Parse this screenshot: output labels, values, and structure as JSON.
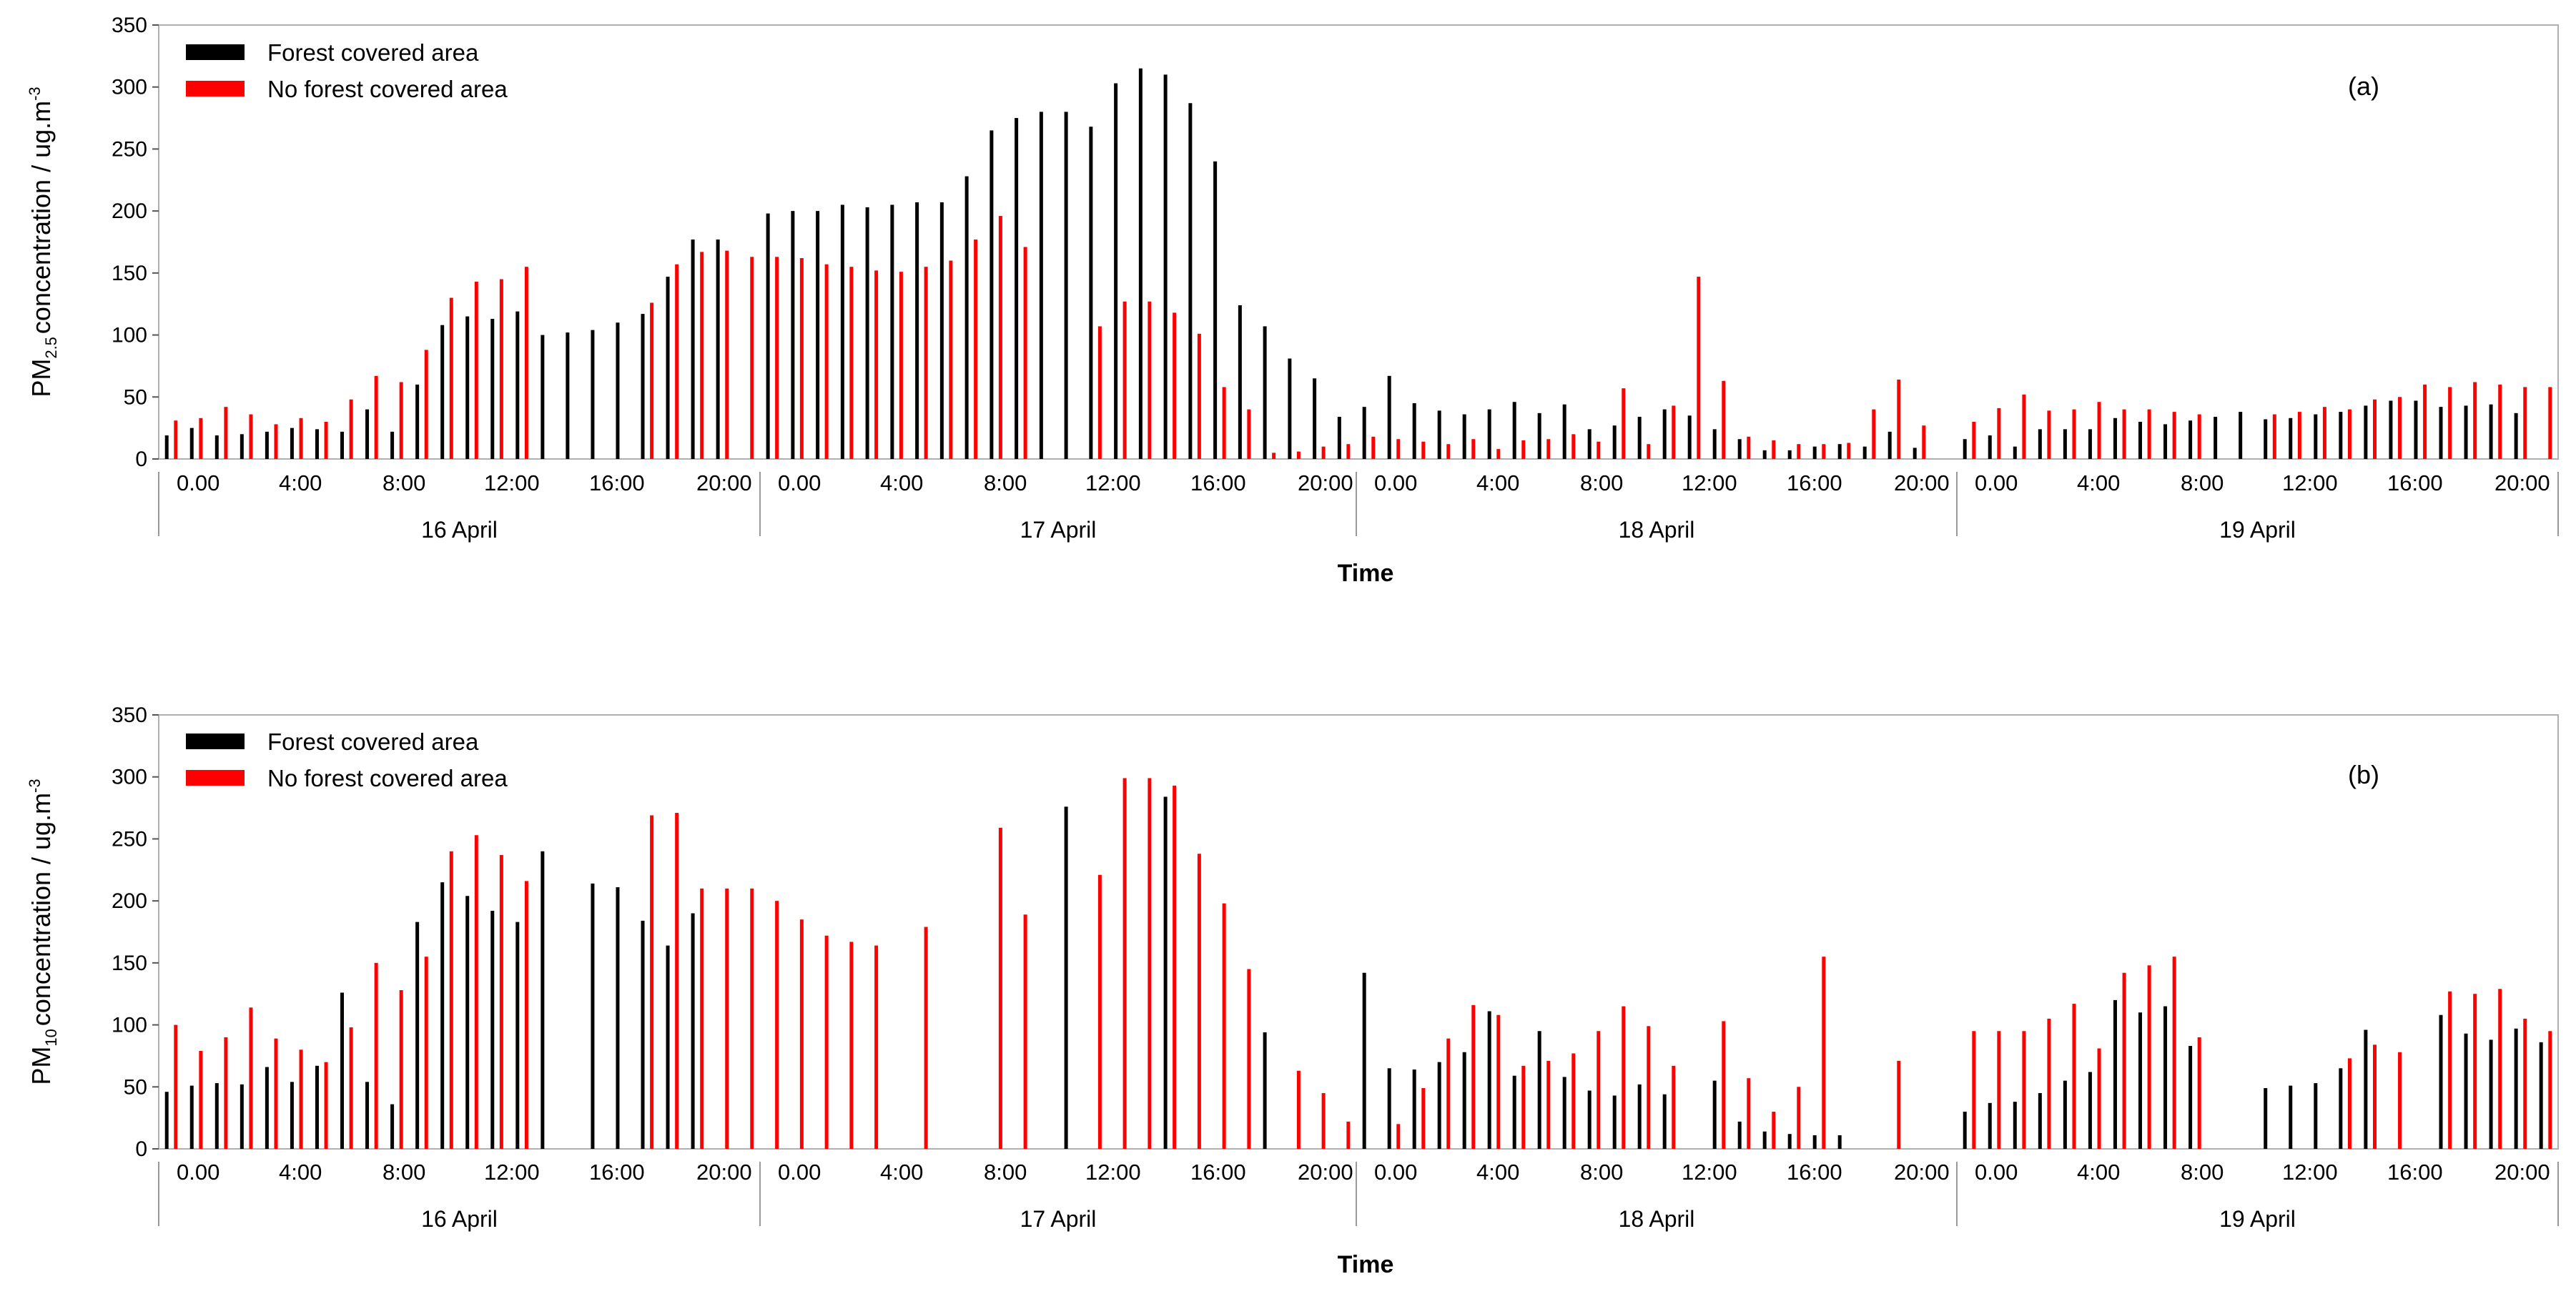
{
  "chart_data": [
    {
      "type": "bar",
      "panel_label": "(a)",
      "ylabel": "PM2.5 concentration / ug.m-3",
      "ylabel_parts": {
        "base": "PM",
        "sub": "2.5",
        "rest": "concentration / ug.m",
        "sup": "-3"
      },
      "xlabel": "Time",
      "ylim": [
        0,
        350
      ],
      "yticks": [
        "0",
        "50",
        "100",
        "150",
        "200",
        "250",
        "300",
        "350"
      ],
      "days": [
        "16 April",
        "17 April",
        "18 April",
        "19 April"
      ],
      "time_ticks": [
        "0.00",
        "4:00",
        "8:00",
        "12:00",
        "16:00",
        "20:00"
      ],
      "legend": {
        "position": "top-left",
        "entries": [
          "Forest covered area",
          "No forest covered area"
        ]
      },
      "colors": {
        "forest": "#000000",
        "no_forest": "#ff0000"
      },
      "series": [
        {
          "name": "Forest covered area",
          "values": [
            19,
            25,
            19,
            20,
            22,
            25,
            24,
            22,
            40,
            22,
            60,
            108,
            115,
            113,
            119,
            100,
            102,
            104,
            110,
            117,
            147,
            177,
            177,
            null,
            198,
            200,
            200,
            205,
            203,
            205,
            207,
            207,
            228,
            265,
            275,
            280,
            280,
            268,
            303,
            315,
            310,
            287,
            240,
            124,
            107,
            81,
            65,
            34,
            42,
            67,
            45,
            39,
            36,
            40,
            46,
            37,
            44,
            24,
            27,
            34,
            40,
            35,
            24,
            16,
            7,
            7,
            10,
            12,
            10,
            22,
            9,
            null,
            16,
            19,
            10,
            24,
            24,
            24,
            33,
            30,
            28,
            31,
            34,
            38,
            32,
            33,
            36,
            38,
            43,
            47,
            47,
            42,
            43,
            44,
            37,
            null
          ]
        },
        {
          "name": "No forest covered area",
          "values": [
            31,
            33,
            42,
            36,
            28,
            33,
            30,
            48,
            67,
            62,
            88,
            130,
            143,
            145,
            155,
            null,
            null,
            null,
            null,
            126,
            157,
            167,
            168,
            163,
            163,
            162,
            157,
            155,
            152,
            151,
            155,
            160,
            177,
            196,
            171,
            null,
            null,
            107,
            127,
            127,
            118,
            101,
            58,
            40,
            5,
            6,
            10,
            12,
            18,
            16,
            14,
            12,
            16,
            8,
            15,
            16,
            20,
            14,
            57,
            12,
            43,
            147,
            63,
            18,
            15,
            12,
            12,
            13,
            40,
            64,
            27,
            null,
            30,
            41,
            52,
            39,
            40,
            46,
            40,
            40,
            38,
            36,
            null,
            null,
            36,
            38,
            42,
            40,
            48,
            50,
            60,
            58,
            62,
            60,
            58,
            58
          ]
        }
      ]
    },
    {
      "type": "bar",
      "panel_label": "(b)",
      "ylabel": "PM10 concentration / ug.m-3",
      "ylabel_parts": {
        "base": "PM",
        "sub": "10",
        "rest": "concentration / ug.m",
        "sup": "-3"
      },
      "xlabel": "Time",
      "ylim": [
        0,
        350
      ],
      "yticks": [
        "0",
        "50",
        "100",
        "150",
        "200",
        "250",
        "300",
        "350"
      ],
      "days": [
        "16 April",
        "17 April",
        "18 April",
        "19 April"
      ],
      "time_ticks": [
        "0.00",
        "4:00",
        "8:00",
        "12:00",
        "16:00",
        "20:00"
      ],
      "legend": {
        "position": "top-left",
        "entries": [
          "Forest covered area",
          "No forest covered area"
        ]
      },
      "colors": {
        "forest": "#000000",
        "no_forest": "#ff0000"
      },
      "series": [
        {
          "name": "Forest covered area",
          "values": [
            46,
            51,
            53,
            52,
            66,
            54,
            67,
            126,
            54,
            36,
            183,
            215,
            204,
            192,
            183,
            240,
            null,
            214,
            211,
            184,
            164,
            190,
            null,
            null,
            null,
            null,
            null,
            null,
            null,
            null,
            null,
            null,
            null,
            null,
            null,
            null,
            276,
            null,
            null,
            null,
            284,
            null,
            null,
            null,
            94,
            null,
            null,
            null,
            142,
            65,
            64,
            70,
            78,
            111,
            59,
            95,
            58,
            47,
            43,
            52,
            44,
            null,
            55,
            22,
            14,
            12,
            11,
            11,
            null,
            null,
            null,
            null,
            30,
            37,
            38,
            45,
            55,
            62,
            120,
            110,
            115,
            83,
            null,
            null,
            49,
            51,
            53,
            65,
            96,
            null,
            null,
            108,
            93,
            88,
            97,
            86
          ]
        },
        {
          "name": "No forest covered area",
          "values": [
            100,
            79,
            90,
            114,
            89,
            80,
            70,
            98,
            150,
            128,
            155,
            240,
            253,
            237,
            216,
            null,
            null,
            null,
            null,
            269,
            271,
            210,
            210,
            210,
            200,
            185,
            172,
            167,
            164,
            null,
            179,
            null,
            null,
            259,
            189,
            null,
            null,
            221,
            299,
            299,
            293,
            238,
            198,
            145,
            null,
            63,
            45,
            22,
            null,
            20,
            49,
            89,
            116,
            108,
            67,
            71,
            77,
            95,
            115,
            99,
            67,
            null,
            103,
            57,
            30,
            50,
            155,
            null,
            null,
            71,
            null,
            null,
            95,
            95,
            95,
            105,
            117,
            81,
            142,
            148,
            155,
            90,
            null,
            null,
            null,
            null,
            null,
            73,
            84,
            78,
            null,
            127,
            125,
            129,
            105,
            95
          ]
        }
      ]
    }
  ]
}
